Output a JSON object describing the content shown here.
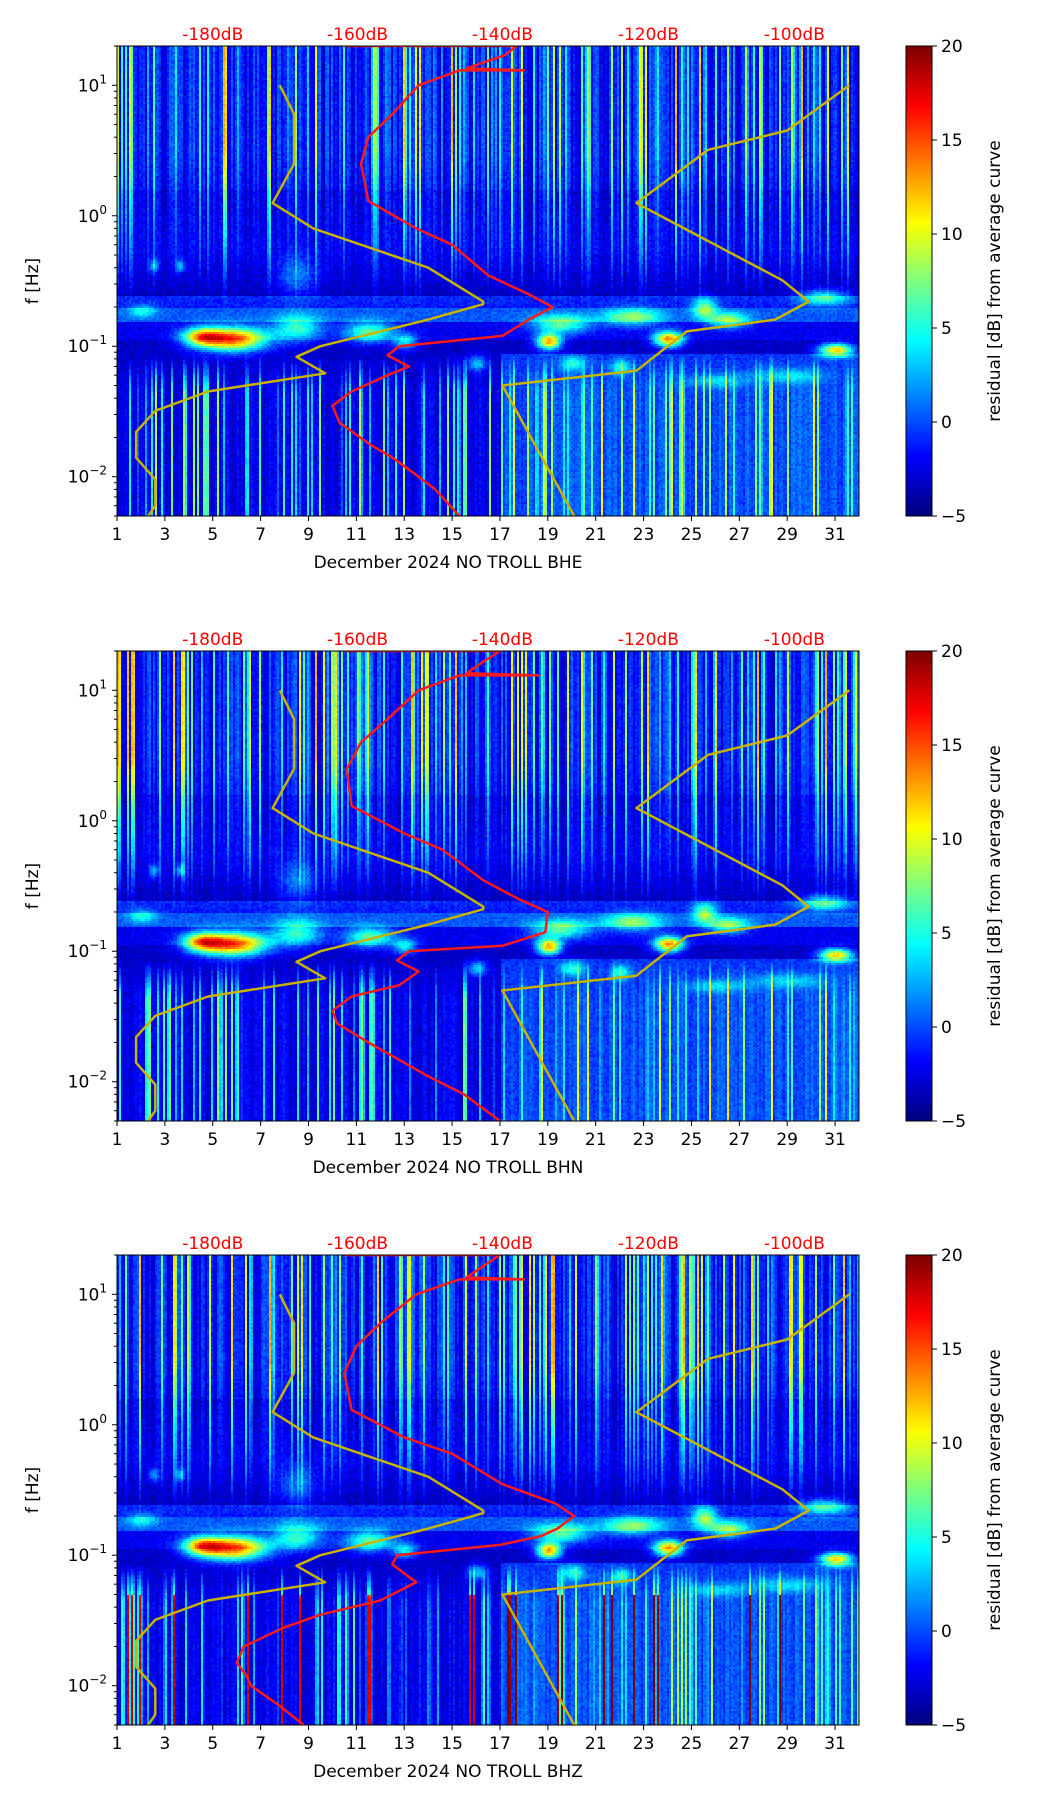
{
  "chart_data": {
    "type": "heatmap",
    "description_units": {
      "x": "day of December 2024",
      "y": "frequency [Hz] (log scale)",
      "color": "residual [dB] from average curve"
    },
    "xticks": [
      1,
      3,
      5,
      7,
      9,
      11,
      13,
      15,
      17,
      19,
      21,
      23,
      25,
      27,
      29,
      31
    ],
    "xlim": [
      1,
      32
    ],
    "ylim": [
      0.005,
      20
    ],
    "yticks": [
      {
        "value": 0.01,
        "base": "10",
        "exp": "−2"
      },
      {
        "value": 0.1,
        "base": "10",
        "exp": "−1"
      },
      {
        "value": 1,
        "base": "10",
        "exp": "0"
      },
      {
        "value": 10,
        "base": "10",
        "exp": "1"
      }
    ],
    "ylabel": "f [Hz]",
    "colorbar": {
      "label": "residual [dB] from average curve",
      "range": [
        -5,
        20
      ],
      "ticks": [
        "−5",
        "0",
        "5",
        "10",
        "15",
        "20"
      ],
      "tick_values": [
        -5,
        0,
        5,
        10,
        15,
        20
      ],
      "colormap": "jet"
    },
    "top_axis": {
      "ticks": [
        {
          "label": "-180dB",
          "day": 5
        },
        {
          "label": "-160dB",
          "day": 11.05
        },
        {
          "label": "-140dB",
          "day": 17.1
        },
        {
          "label": "-120dB",
          "day": 23.2
        },
        {
          "label": "-100dB",
          "day": 29.3
        }
      ],
      "color": "#ff0000"
    },
    "reference_curves": {
      "color": "#c8b400",
      "nlnm": [
        [
          2.3,
          0.005
        ],
        [
          2.6,
          0.006
        ],
        [
          2.6,
          0.0095
        ],
        [
          1.8,
          0.014
        ],
        [
          1.8,
          0.022
        ],
        [
          2.6,
          0.032
        ],
        [
          4.8,
          0.045
        ],
        [
          9.7,
          0.062
        ],
        [
          8.5,
          0.083
        ],
        [
          9.5,
          0.1
        ],
        [
          14,
          0.16
        ],
        [
          16.3,
          0.21
        ],
        [
          16.3,
          0.22
        ],
        [
          14,
          0.4
        ],
        [
          9.2,
          0.8
        ],
        [
          7.5,
          1.25
        ],
        [
          8.4,
          2.5
        ],
        [
          8.4,
          6
        ],
        [
          7.8,
          10
        ]
      ],
      "nhnm": [
        [
          20.1,
          0.005
        ],
        [
          17.1,
          0.05
        ],
        [
          22.7,
          0.065
        ],
        [
          24.8,
          0.13
        ],
        [
          28.5,
          0.16
        ],
        [
          29.9,
          0.22
        ],
        [
          28.8,
          0.32
        ],
        [
          22.7,
          1.25
        ],
        [
          25.7,
          3.2
        ],
        [
          29,
          4.5
        ],
        [
          31.6,
          10
        ]
      ]
    },
    "panels": [
      {
        "xlabel": "December 2024 NO TROLL  BHE",
        "median_curve": [
          [
            15.3,
            0.005
          ],
          [
            14.3,
            0.008
          ],
          [
            13.3,
            0.011
          ],
          [
            12.5,
            0.014
          ],
          [
            11.5,
            0.018
          ],
          [
            10.3,
            0.026
          ],
          [
            10,
            0.035
          ],
          [
            10.8,
            0.045
          ],
          [
            12.3,
            0.06
          ],
          [
            13.2,
            0.07
          ],
          [
            12.3,
            0.085
          ],
          [
            12.8,
            0.1
          ],
          [
            17.1,
            0.12
          ],
          [
            18.2,
            0.16
          ],
          [
            19.2,
            0.2
          ],
          [
            18.2,
            0.25
          ],
          [
            16.5,
            0.35
          ],
          [
            15,
            0.6
          ],
          [
            13.5,
            0.8
          ],
          [
            11.5,
            1.3
          ],
          [
            11.2,
            2.5
          ],
          [
            11.5,
            4
          ],
          [
            12.5,
            6
          ],
          [
            13.6,
            10
          ],
          [
            15.3,
            13
          ],
          [
            18,
            13
          ],
          [
            15.6,
            13.5
          ],
          [
            17.2,
            17
          ],
          [
            17.7,
            20
          ],
          [
            10.5,
            20
          ]
        ]
      },
      {
        "xlabel": "December 2024 NO TROLL  BHN",
        "median_curve": [
          [
            17,
            0.005
          ],
          [
            15.5,
            0.008
          ],
          [
            14,
            0.011
          ],
          [
            13,
            0.014
          ],
          [
            11.5,
            0.02
          ],
          [
            10.2,
            0.028
          ],
          [
            10,
            0.035
          ],
          [
            10.8,
            0.045
          ],
          [
            12.8,
            0.055
          ],
          [
            13.6,
            0.07
          ],
          [
            12.7,
            0.085
          ],
          [
            13.2,
            0.1
          ],
          [
            17.1,
            0.11
          ],
          [
            18.9,
            0.14
          ],
          [
            19,
            0.2
          ],
          [
            17.8,
            0.25
          ],
          [
            16.3,
            0.35
          ],
          [
            14.6,
            0.6
          ],
          [
            13,
            0.8
          ],
          [
            10.8,
            1.3
          ],
          [
            10.6,
            2.5
          ],
          [
            11.2,
            4
          ],
          [
            12.3,
            6
          ],
          [
            13.6,
            10
          ],
          [
            15.3,
            13
          ],
          [
            18.6,
            13
          ],
          [
            15.6,
            13.5
          ],
          [
            16.4,
            17
          ],
          [
            17,
            20
          ],
          [
            10.5,
            20
          ]
        ]
      },
      {
        "xlabel": "December 2024 NO TROLL  BHZ",
        "median_curve": [
          [
            8.8,
            0.005
          ],
          [
            7.8,
            0.007
          ],
          [
            6.6,
            0.01
          ],
          [
            6.4,
            0.012
          ],
          [
            6,
            0.015
          ],
          [
            6.3,
            0.02
          ],
          [
            8,
            0.028
          ],
          [
            9.5,
            0.035
          ],
          [
            12,
            0.045
          ],
          [
            13.5,
            0.062
          ],
          [
            12.5,
            0.085
          ],
          [
            12.7,
            0.1
          ],
          [
            17,
            0.12
          ],
          [
            18.7,
            0.14
          ],
          [
            19.4,
            0.16
          ],
          [
            20.1,
            0.2
          ],
          [
            19.3,
            0.25
          ],
          [
            17.1,
            0.35
          ],
          [
            15,
            0.6
          ],
          [
            13,
            0.8
          ],
          [
            10.8,
            1.3
          ],
          [
            10.5,
            2.5
          ],
          [
            11,
            4
          ],
          [
            12,
            6
          ],
          [
            13.5,
            10
          ],
          [
            15.3,
            13
          ],
          [
            18,
            13
          ],
          [
            15.6,
            13.5
          ],
          [
            17,
            20
          ],
          [
            10.5,
            20
          ]
        ]
      }
    ]
  }
}
